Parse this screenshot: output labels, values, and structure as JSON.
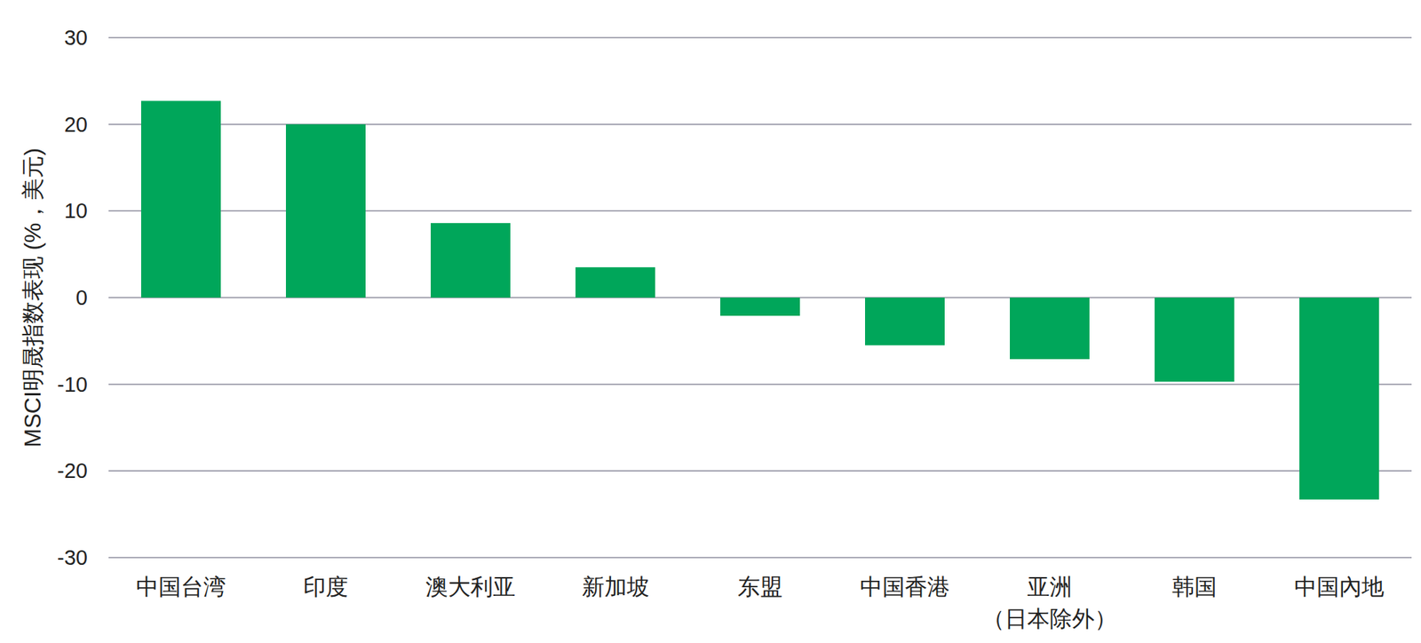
{
  "chart_data": {
    "type": "bar",
    "y_label": "MSCI明晟指数表现 (%，美元)",
    "categories": [
      "中国台湾",
      "印度",
      "澳大利亚",
      "新加坡",
      "东盟",
      "中国香港",
      "亚洲\n（日本除外）",
      "韩国",
      "中国內地"
    ],
    "values": [
      22.7,
      20.0,
      8.6,
      3.5,
      -2.1,
      -5.5,
      -7.1,
      -9.7,
      -23.3
    ],
    "color": "#00a65a",
    "ylim": [
      -30,
      30
    ],
    "yticks": [
      -30,
      -20,
      -10,
      0,
      10,
      20,
      30
    ],
    "grid": true
  }
}
